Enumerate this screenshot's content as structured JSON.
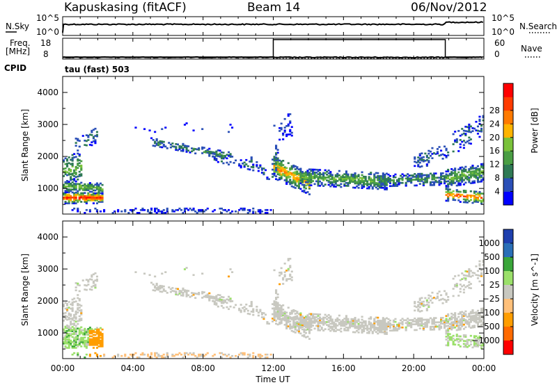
{
  "header": {
    "station": "Kapuskasing (fitACF)",
    "beam": "Beam 14",
    "date": "06/Nov/2012"
  },
  "noise_panel": {
    "left_label": "N.Sky",
    "right_label": "N.Search",
    "left_ticks": [
      "10^5",
      "10^0"
    ],
    "right_ticks": [
      "10^5",
      "10^0"
    ]
  },
  "freq_panel": {
    "left_label_1": "Freq.",
    "left_label_2": "[MHz]",
    "right_label": "Nave",
    "cpid_label": "CPID",
    "left_ticks": [
      "18",
      "8"
    ],
    "right_ticks": [
      "60",
      "0"
    ],
    "nave_step": {
      "low": 6,
      "high": 56,
      "start_hour": 12.0,
      "end_hour": 21.8
    }
  },
  "cpid_text": "tau (fast) 503",
  "colors": {
    "power": [
      "#0000ff",
      "#2a4fb7",
      "#2f7a55",
      "#4a9e44",
      "#7ac23a",
      "#ffb400",
      "#ff7a00",
      "#ff3b00",
      "#ff0000"
    ],
    "velocity": [
      "#ff0000",
      "#ff6a00",
      "#ff9d00",
      "#ffc07a",
      "#c8c8c0",
      "#9be06a",
      "#3aa63a",
      "#2a6fb7",
      "#1e3fae"
    ]
  },
  "chart_data": [
    {
      "type": "heatmap",
      "ylabel": "Slant Range [km]",
      "xlim": [
        0,
        24
      ],
      "ylim": [
        200,
        4500
      ],
      "yticks": [
        "1000",
        "2000",
        "3000",
        "4000"
      ],
      "colorbar": {
        "label": "Power [dB]",
        "ticks": [
          "4",
          "8",
          "12",
          "16",
          "20",
          "24",
          "28"
        ]
      }
    },
    {
      "type": "heatmap",
      "ylabel": "Slant Range [km]",
      "xlabel": "Time UT",
      "xlim": [
        0,
        24
      ],
      "ylim": [
        200,
        4500
      ],
      "xticks": [
        "00:00",
        "04:00",
        "08:00",
        "12:00",
        "16:00",
        "20:00",
        "00:00"
      ],
      "yticks": [
        "1000",
        "2000",
        "3000",
        "4000"
      ],
      "colorbar": {
        "label": "Velocity [m s^-1]",
        "ticks": [
          "1000",
          "500",
          "100",
          "25",
          "−25",
          "−100",
          "−500",
          "−1000"
        ]
      }
    }
  ]
}
